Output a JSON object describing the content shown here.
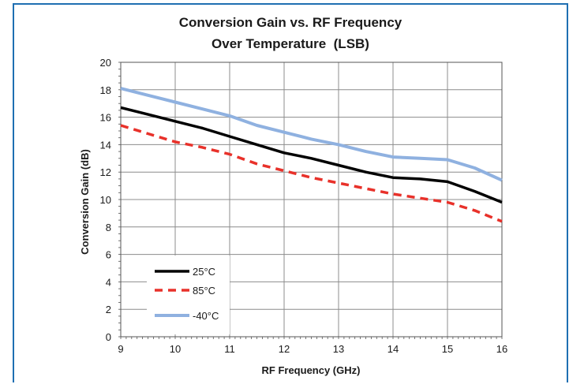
{
  "chart_data": {
    "type": "line",
    "title": "Conversion Gain vs. RF Frequency",
    "subtitle": "Over Temperature  (LSB)",
    "xlabel": "RF Frequency (GHz)",
    "ylabel": "Conversion Gain (dB)",
    "xlim": [
      9,
      16
    ],
    "ylim": [
      0,
      20
    ],
    "x_ticks": [
      9,
      10,
      11,
      12,
      13,
      14,
      15,
      16
    ],
    "y_ticks": [
      0,
      2,
      4,
      6,
      8,
      10,
      12,
      14,
      16,
      18,
      20
    ],
    "grid": true,
    "legend_position": "bottom-left",
    "series": [
      {
        "name": "25°C",
        "color": "#000000",
        "dash": "solid",
        "x": [
          9,
          9.5,
          10,
          10.5,
          11,
          11.5,
          12,
          12.5,
          13,
          13.5,
          14,
          14.5,
          15,
          15.5,
          16
        ],
        "y": [
          16.7,
          16.2,
          15.7,
          15.2,
          14.6,
          14.0,
          13.4,
          13.0,
          12.5,
          12.0,
          11.6,
          11.5,
          11.3,
          10.6,
          9.8
        ]
      },
      {
        "name": "85°C",
        "color": "#e8312a",
        "dash": "dashed",
        "x": [
          9,
          9.5,
          10,
          10.5,
          11,
          11.5,
          12,
          12.5,
          13,
          13.5,
          14,
          14.5,
          15,
          15.5,
          16
        ],
        "y": [
          15.4,
          14.8,
          14.2,
          13.8,
          13.3,
          12.6,
          12.1,
          11.6,
          11.2,
          10.8,
          10.4,
          10.1,
          9.8,
          9.2,
          8.4
        ]
      },
      {
        "name": "-40°C",
        "color": "#8fb1e0",
        "dash": "solid",
        "x": [
          9,
          9.5,
          10,
          10.5,
          11,
          11.5,
          12,
          12.5,
          13,
          13.5,
          14,
          14.5,
          15,
          15.5,
          16
        ],
        "y": [
          18.1,
          17.6,
          17.1,
          16.6,
          16.1,
          15.4,
          14.9,
          14.4,
          14.0,
          13.5,
          13.1,
          13.0,
          12.9,
          12.3,
          11.4
        ]
      }
    ]
  }
}
